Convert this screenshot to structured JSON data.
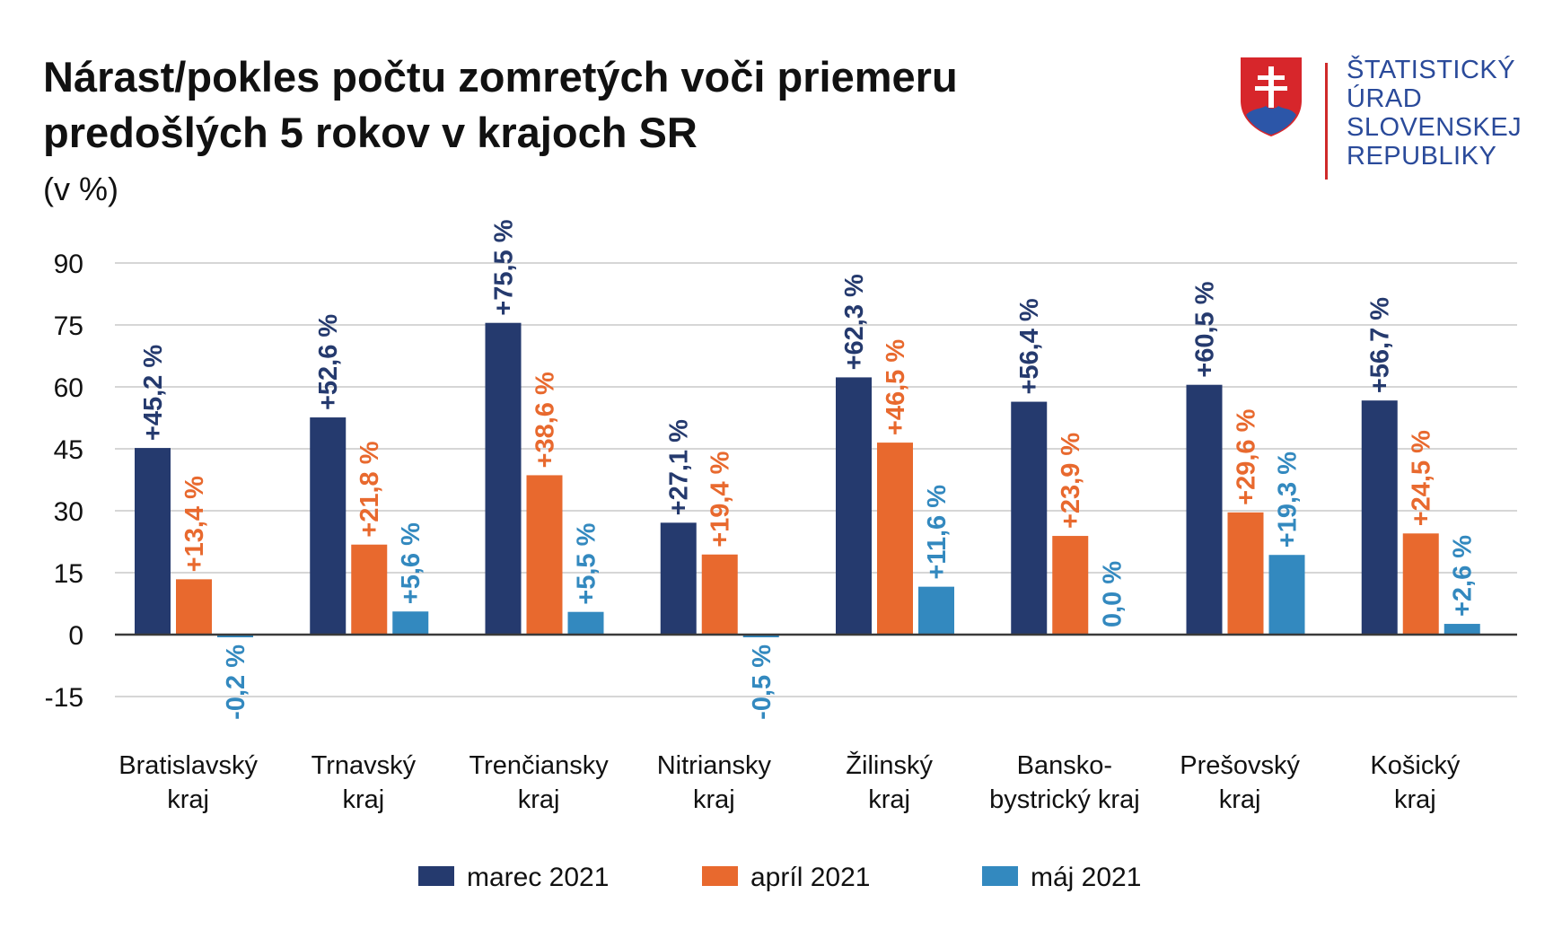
{
  "title": "Nárast/pokles počtu zomretých voči priemeru predošlých 5 rokov v krajoch SR",
  "subtitle": "(v %)",
  "logo": {
    "lines": [
      "ŠTATISTICKÝ",
      "ÚRAD",
      "SLOVENSKEJ",
      "REPUBLIKY"
    ],
    "icon": "slovak-coat-of-arms-icon"
  },
  "colors": {
    "marec": "#253a6e",
    "april": "#e8692e",
    "maj": "#3389bf",
    "grid": "#c8c8c8",
    "axis": "#3a3a3a"
  },
  "chart_data": {
    "type": "bar",
    "categories": [
      [
        "Bratislavský",
        "kraj"
      ],
      [
        "Trnavský",
        "kraj"
      ],
      [
        "Trenčiansky",
        "kraj"
      ],
      [
        "Nitriansky",
        "kraj"
      ],
      [
        "Žilinský",
        "kraj"
      ],
      [
        "Bansko-",
        "bystrický kraj"
      ],
      [
        "Prešovský",
        "kraj"
      ],
      [
        "Košický",
        "kraj"
      ]
    ],
    "series": [
      {
        "name": "marec 2021",
        "values": [
          45.2,
          52.6,
          75.5,
          27.1,
          62.3,
          56.4,
          60.5,
          56.7
        ],
        "labels": [
          "+45,2 %",
          "+52,6 %",
          "+75,5 %",
          "+27,1 %",
          "+62,3 %",
          "+56,4 %",
          "+60,5 %",
          "+56,7 %"
        ]
      },
      {
        "name": "apríl 2021",
        "values": [
          13.4,
          21.8,
          38.6,
          19.4,
          46.5,
          23.9,
          29.6,
          24.5
        ],
        "labels": [
          "+13,4 %",
          "+21,8 %",
          "+38,6 %",
          "+19,4 %",
          "+46,5 %",
          "+23,9 %",
          "+29,6 %",
          "+24,5 %"
        ]
      },
      {
        "name": "máj 2021",
        "values": [
          -0.2,
          5.6,
          5.5,
          -0.5,
          11.6,
          0.0,
          19.3,
          2.6
        ],
        "labels": [
          "-0,2 %",
          "+5,6 %",
          "+5,5 %",
          "-0,5 %",
          "+11,6 %",
          "0,0 %",
          "+19,3 %",
          "+2,6 %"
        ]
      }
    ],
    "yticks": [
      "90",
      "75",
      "60",
      "45",
      "30",
      "15",
      "0",
      "-15"
    ],
    "ytick_values": [
      90,
      75,
      60,
      45,
      30,
      15,
      0,
      -15
    ],
    "ylim": [
      -15,
      90
    ],
    "grid": true,
    "legend_position": "bottom"
  }
}
